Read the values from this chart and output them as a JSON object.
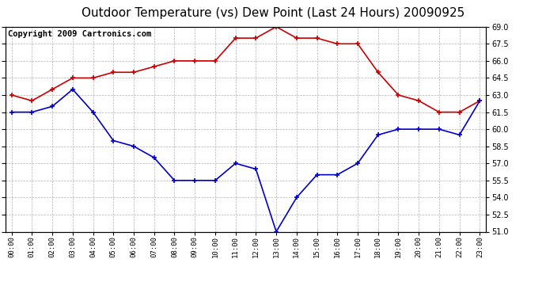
{
  "title": "Outdoor Temperature (vs) Dew Point (Last 24 Hours) 20090925",
  "copyright": "Copyright 2009 Cartronics.com",
  "hours": [
    "00:00",
    "01:00",
    "02:00",
    "03:00",
    "04:00",
    "05:00",
    "06:00",
    "07:00",
    "08:00",
    "09:00",
    "10:00",
    "11:00",
    "12:00",
    "13:00",
    "14:00",
    "15:00",
    "16:00",
    "17:00",
    "18:00",
    "19:00",
    "20:00",
    "21:00",
    "22:00",
    "23:00"
  ],
  "temp": [
    63.0,
    62.5,
    63.5,
    64.5,
    64.5,
    65.0,
    65.0,
    65.5,
    66.0,
    66.0,
    66.0,
    68.0,
    68.0,
    69.0,
    68.0,
    68.0,
    67.5,
    67.5,
    65.0,
    63.0,
    62.5,
    61.5,
    61.5,
    62.5
  ],
  "dew": [
    61.5,
    61.5,
    62.0,
    63.5,
    61.5,
    59.0,
    58.5,
    57.5,
    55.5,
    55.5,
    55.5,
    57.0,
    56.5,
    51.0,
    54.0,
    56.0,
    56.0,
    57.0,
    59.5,
    60.0,
    60.0,
    60.0,
    59.5,
    62.5
  ],
  "temp_color": "#cc0000",
  "dew_color": "#0000cc",
  "bg_color": "#ffffff",
  "grid_color": "#aaaaaa",
  "ylim": [
    51.0,
    69.0
  ],
  "yticks": [
    51.0,
    52.5,
    54.0,
    55.5,
    57.0,
    58.5,
    60.0,
    61.5,
    63.0,
    64.5,
    66.0,
    67.5,
    69.0
  ],
  "title_fontsize": 11,
  "copyright_fontsize": 7.5
}
